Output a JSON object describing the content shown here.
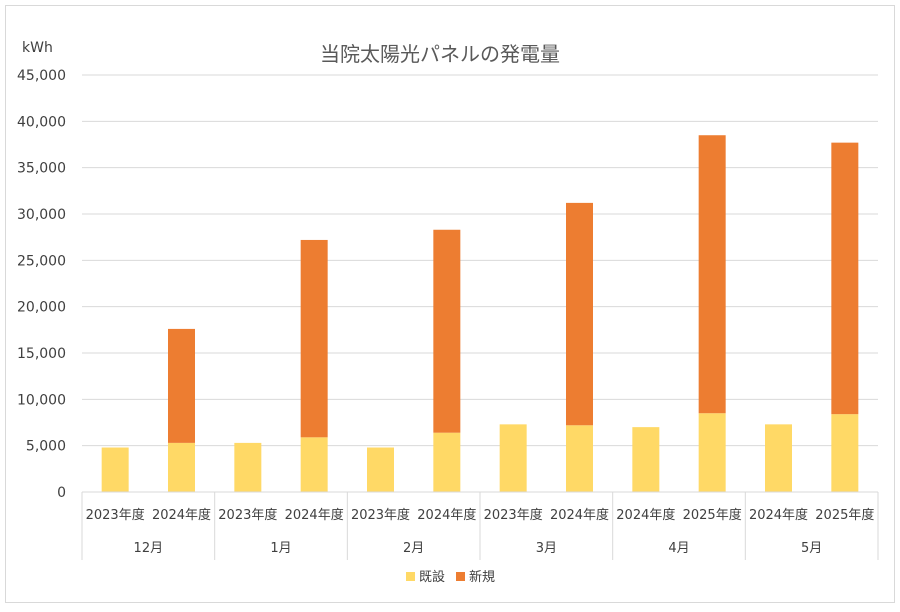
{
  "chart_data": {
    "type": "bar",
    "stacked": true,
    "title": "当院太陽光パネルの発電量",
    "ylabel": "kWh",
    "ylim": [
      0,
      45000
    ],
    "y_ticks": [
      "0",
      "5,000",
      "10,000",
      "15,000",
      "20,000",
      "25,000",
      "30,000",
      "35,000",
      "40,000",
      "45,000"
    ],
    "y_tick_values": [
      0,
      5000,
      10000,
      15000,
      20000,
      25000,
      30000,
      35000,
      40000,
      45000
    ],
    "grid": true,
    "legend_position": "bottom",
    "groups": [
      "12月",
      "1月",
      "2月",
      "3月",
      "4月",
      "5月"
    ],
    "categories": [
      "2023年度",
      "2024年度",
      "2023年度",
      "2024年度",
      "2023年度",
      "2024年度",
      "2023年度",
      "2024年度",
      "2024年度",
      "2025年度",
      "2024年度",
      "2025年度"
    ],
    "series": [
      {
        "name": "既設",
        "color": "#FFD966",
        "values": [
          4800,
          5300,
          5300,
          5900,
          4800,
          6400,
          7300,
          7200,
          7000,
          8500,
          7300,
          8400
        ]
      },
      {
        "name": "新規",
        "color": "#ED7D31",
        "values": [
          0,
          12300,
          0,
          21300,
          0,
          21900,
          0,
          24000,
          0,
          30000,
          0,
          29300
        ]
      }
    ]
  }
}
